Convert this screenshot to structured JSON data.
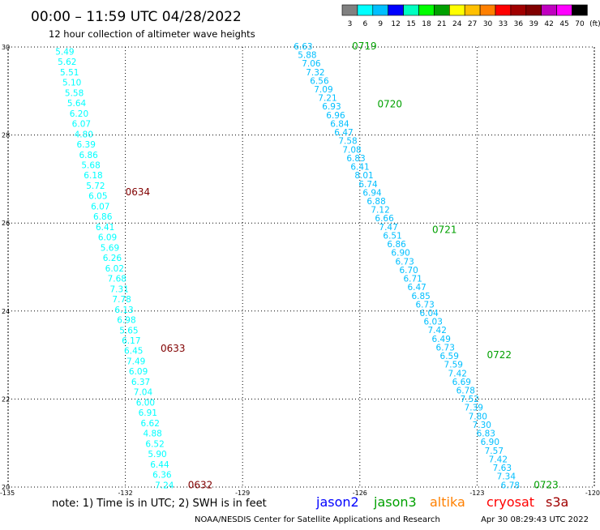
{
  "header": {
    "title": "00:00 – 11:59 UTC 04/28/2022",
    "subtitle": "12 hour collection of altimeter wave heights"
  },
  "legend_scale": {
    "labels": [
      "3",
      "6",
      "9",
      "12",
      "15",
      "18",
      "21",
      "24",
      "27",
      "30",
      "33",
      "36",
      "39",
      "42",
      "45",
      "70",
      "(ft)"
    ],
    "colors": [
      "#808080",
      "#00ffff",
      "#00bfff",
      "#0000ff",
      "#00ffc0",
      "#00ff00",
      "#00a000",
      "#ffff00",
      "#ffc000",
      "#ff8000",
      "#ff0000",
      "#a00000",
      "#800000",
      "#c000c0",
      "#ff00ff",
      "#000000"
    ]
  },
  "footer": {
    "note": "note: 1) Time is in UTC; 2) SWH is in feet",
    "missions": [
      {
        "name": "jason2",
        "color": "#0000ff"
      },
      {
        "name": "jason3",
        "color": "#00a000"
      },
      {
        "name": "altika",
        "color": "#ff8000"
      },
      {
        "name": "cryosat",
        "color": "#ff0000"
      },
      {
        "name": "s3a",
        "color": "#a00000"
      }
    ],
    "credit": "NOAA/NESDIS Center for Satellite Applications and Research",
    "timestamp": "Apr 30 08:29:43 UTC 2022"
  },
  "chart_data": {
    "type": "scatter",
    "xlim": [
      -135,
      -120
    ],
    "ylim": [
      20,
      30
    ],
    "x_ticks": [
      "-135",
      "-132",
      "-129",
      "-126",
      "-123",
      "-120"
    ],
    "y_ticks": [
      "20",
      "22",
      "24",
      "26",
      "28",
      "30"
    ],
    "grid": true,
    "series": [
      {
        "track": "west",
        "x_top": -133.55,
        "y_top": 29.9,
        "x_bottom": -131.0,
        "y_bottom": 20.05,
        "color": "#00ffff",
        "values": [
          "5.49",
          "5.62",
          "5.51",
          "5.10",
          "5.58",
          "5.64",
          "6.20",
          "6.07",
          "4.80",
          "6.39",
          "6.86",
          "5.68",
          "6.18",
          "5.72",
          "6.05",
          "6.07",
          "6.86",
          "6.41",
          "6.09",
          "5.69",
          "6.26",
          "6.02",
          "7.68",
          "7.31",
          "7.78",
          "6.13",
          "6.98",
          "5.65",
          "6.17",
          "6.45",
          "7.49",
          "6.09",
          "6.37",
          "7.04",
          "6.00",
          "6.91",
          "6.62",
          "4.88",
          "6.52",
          "5.90",
          "6.44",
          "6.36",
          "7.24"
        ],
        "time_labels": [
          {
            "text": "0634",
            "x": -132.0,
            "y": 26.7,
            "color": "#800000"
          },
          {
            "text": "0633",
            "x": -131.1,
            "y": 23.15,
            "color": "#800000"
          },
          {
            "text": "0632",
            "x": -130.4,
            "y": 20.05,
            "color": "#800000"
          }
        ]
      },
      {
        "track": "east",
        "x_top": -127.45,
        "y_top": 30.02,
        "x_bottom": -122.15,
        "y_bottom": 20.05,
        "color": "#00bfff",
        "values": [
          "6.63",
          "5.88",
          "7.06",
          "7.32",
          "6.56",
          "7.09",
          "7.21",
          "6.93",
          "6.96",
          "6.84",
          "6.47",
          "7.58",
          "7.08",
          "6.83",
          "6.41",
          "8.01",
          "6.74",
          "6.94",
          "6.88",
          "7.12",
          "6.66",
          "7.47",
          "6.51",
          "6.86",
          "6.90",
          "6.73",
          "6.70",
          "6.71",
          "6.47",
          "6.85",
          "6.73",
          "6.04",
          "6.03",
          "7.42",
          "6.49",
          "6.73",
          "6.59",
          "7.59",
          "7.42",
          "6.69",
          "6.78",
          "7.52",
          "7.39",
          "7.80",
          "7.30",
          "6.83",
          "6.90",
          "7.57",
          "7.42",
          "7.63",
          "7.34",
          "6.78"
        ],
        "time_labels": [
          {
            "text": "0719",
            "x": -126.2,
            "y": 30.02,
            "color": "#00a000"
          },
          {
            "text": "0720",
            "x": -125.55,
            "y": 28.7,
            "color": "#00a000"
          },
          {
            "text": "0721",
            "x": -124.15,
            "y": 25.85,
            "color": "#00a000"
          },
          {
            "text": "0722",
            "x": -122.75,
            "y": 23.0,
            "color": "#00a000"
          },
          {
            "text": "0723",
            "x": -121.55,
            "y": 20.05,
            "color": "#00a000"
          }
        ]
      }
    ]
  }
}
